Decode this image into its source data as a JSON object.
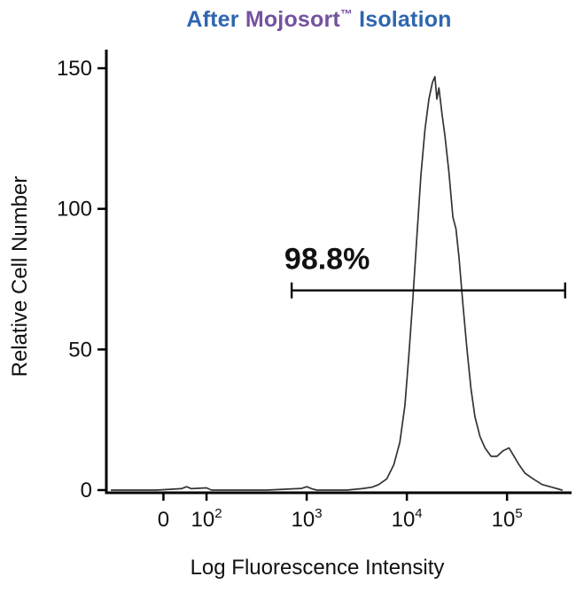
{
  "title": {
    "parts": [
      {
        "text": "After ",
        "color": "#2e66b0",
        "superscript": false
      },
      {
        "text": "Mojosort",
        "color": "#7452a0",
        "superscript": false
      },
      {
        "text": "™",
        "color": "#7452a0",
        "superscript": true
      },
      {
        "text": " Isolation",
        "color": "#2e66b0",
        "superscript": false
      }
    ]
  },
  "chart_data": {
    "type": "line",
    "title": "After Mojosort™ Isolation",
    "xlabel": "Log Fluorescence Intensity",
    "ylabel": "Relative Cell Number",
    "x_scale": "log",
    "x_domain_log": [
      1.0,
      5.6
    ],
    "ylim": [
      0,
      150
    ],
    "y_ticks": [
      0,
      50,
      100,
      150
    ],
    "x_ticks": [
      {
        "label": "0",
        "log": 1.57
      },
      {
        "base": "10",
        "exp": "2",
        "log": 2
      },
      {
        "base": "10",
        "exp": "3",
        "log": 3
      },
      {
        "base": "10",
        "exp": "4",
        "log": 4
      },
      {
        "base": "10",
        "exp": "5",
        "log": 5
      }
    ],
    "grid": false,
    "legend": "none",
    "series": [
      {
        "name": "After MojoSort isolation",
        "color": "#333333",
        "points": [
          [
            1.05,
            0
          ],
          [
            1.5,
            0
          ],
          [
            1.75,
            0.5
          ],
          [
            1.8,
            1.2
          ],
          [
            1.85,
            0.5
          ],
          [
            2.0,
            0.8
          ],
          [
            2.05,
            0
          ],
          [
            2.6,
            0
          ],
          [
            2.95,
            0.6
          ],
          [
            3.0,
            1.2
          ],
          [
            3.05,
            0.5
          ],
          [
            3.1,
            0
          ],
          [
            3.4,
            0
          ],
          [
            3.55,
            0.5
          ],
          [
            3.65,
            1
          ],
          [
            3.72,
            2
          ],
          [
            3.8,
            4
          ],
          [
            3.87,
            9
          ],
          [
            3.93,
            17
          ],
          [
            3.98,
            30
          ],
          [
            4.02,
            48
          ],
          [
            4.06,
            68
          ],
          [
            4.1,
            90
          ],
          [
            4.14,
            112
          ],
          [
            4.18,
            128
          ],
          [
            4.22,
            139
          ],
          [
            4.255,
            145
          ],
          [
            4.28,
            147
          ],
          [
            4.3,
            139
          ],
          [
            4.32,
            143
          ],
          [
            4.35,
            134
          ],
          [
            4.38,
            126
          ],
          [
            4.42,
            113
          ],
          [
            4.46,
            97
          ],
          [
            4.49,
            93
          ],
          [
            4.52,
            83
          ],
          [
            4.56,
            66
          ],
          [
            4.6,
            50
          ],
          [
            4.64,
            36
          ],
          [
            4.68,
            26
          ],
          [
            4.73,
            19
          ],
          [
            4.78,
            15
          ],
          [
            4.84,
            12
          ],
          [
            4.9,
            12
          ],
          [
            4.96,
            14
          ],
          [
            5.02,
            15
          ],
          [
            5.07,
            12
          ],
          [
            5.12,
            9
          ],
          [
            5.18,
            6
          ],
          [
            5.26,
            4
          ],
          [
            5.35,
            2
          ],
          [
            5.45,
            1
          ],
          [
            5.55,
            0
          ]
        ]
      }
    ],
    "gate": {
      "label": "98.8%",
      "from_log": 2.85,
      "to_log": 5.58,
      "y_value": 71
    }
  },
  "colors": {
    "axis": "#000000",
    "curve": "#333333",
    "gate": "#0a0a0a"
  }
}
